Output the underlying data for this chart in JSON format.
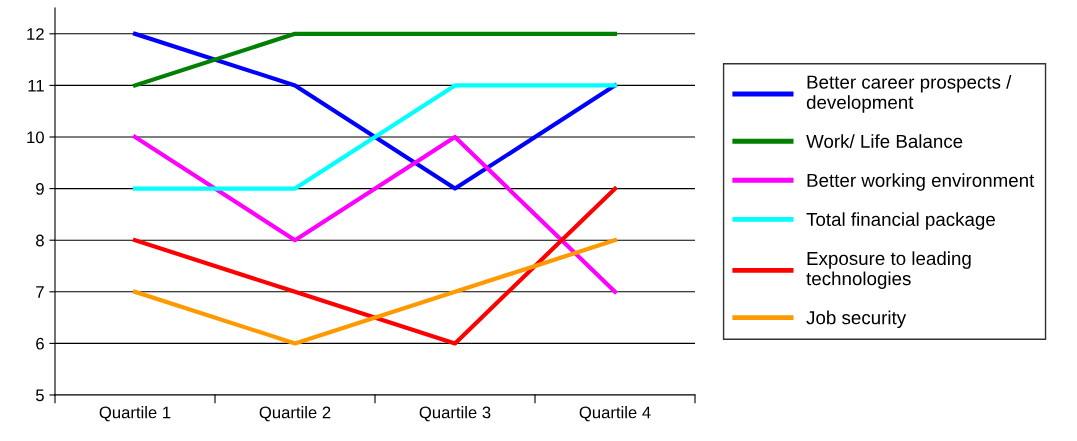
{
  "chart_data": {
    "type": "line",
    "categories": [
      "Quartile 1",
      "Quartile 2",
      "Quartile 3",
      "Quartile 4"
    ],
    "series": [
      {
        "name": "Better career prospects /\ndevelopment",
        "color": "#0000ff",
        "values": [
          12,
          11,
          9,
          11
        ]
      },
      {
        "name": "Work/ Life Balance",
        "color": "#008000",
        "values": [
          11,
          12,
          12,
          12
        ]
      },
      {
        "name": "Better working environment",
        "color": "#ff00ff",
        "values": [
          10,
          8,
          10,
          7
        ]
      },
      {
        "name": "Total financial package",
        "color": "#00ffff",
        "values": [
          9,
          9,
          11,
          11
        ]
      },
      {
        "name": "Exposure to leading\ntechnologies",
        "color": "#ff0000",
        "values": [
          8,
          7,
          6,
          9
        ]
      },
      {
        "name": "Job security",
        "color": "#ff9900",
        "values": [
          7,
          6,
          7,
          8
        ]
      }
    ],
    "ylim": [
      5,
      12.5
    ],
    "yticks": [
      5,
      6,
      7,
      8,
      9,
      10,
      11,
      12
    ],
    "grid": "y",
    "legend": "right",
    "marker": "none",
    "line_style": "solid"
  }
}
